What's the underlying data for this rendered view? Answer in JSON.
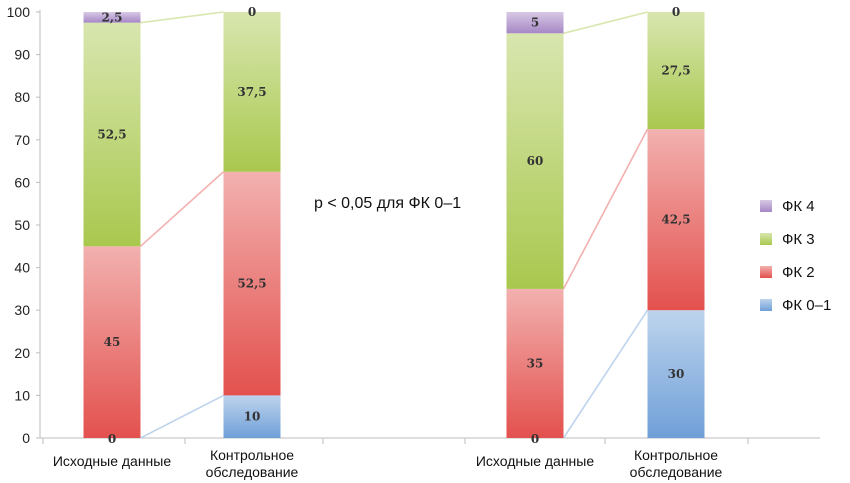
{
  "chart_data": {
    "type": "bar",
    "stacked": true,
    "categories": [
      "Исходные данные",
      "Контрольное обследование",
      "Исходные данные",
      "Контрольное обследование"
    ],
    "series": [
      {
        "name": "ФК 0–1",
        "values": [
          0,
          10,
          0,
          30
        ],
        "color": "#6f9fd8"
      },
      {
        "name": "ФК 2",
        "values": [
          45,
          52.5,
          35,
          42.5
        ],
        "color": "#e3514e"
      },
      {
        "name": "ФК 3",
        "values": [
          52.5,
          37.5,
          60,
          27.5
        ],
        "color": "#a9c84e"
      },
      {
        "name": "ФК 4",
        "values": [
          2.5,
          0,
          5,
          0
        ],
        "color": "#a687c5"
      }
    ],
    "value_labels": [
      [
        "0",
        "45",
        "52,5",
        "2,5"
      ],
      [
        "10",
        "52,5",
        "37,5",
        "0"
      ],
      [
        "0",
        "35",
        "60",
        "5"
      ],
      [
        "30",
        "42,5",
        "27,5",
        "0"
      ]
    ],
    "y_ticks": [
      "0",
      "10",
      "20",
      "30",
      "40",
      "50",
      "60",
      "70",
      "80",
      "90",
      "100"
    ],
    "ylim": [
      0,
      100
    ],
    "annotation": "p < 0,05 для ФК 0–1",
    "legend_position": "right",
    "legend_order": [
      "ФК 4",
      "ФК 3",
      "ФК 2",
      "ФК 0–1"
    ]
  }
}
